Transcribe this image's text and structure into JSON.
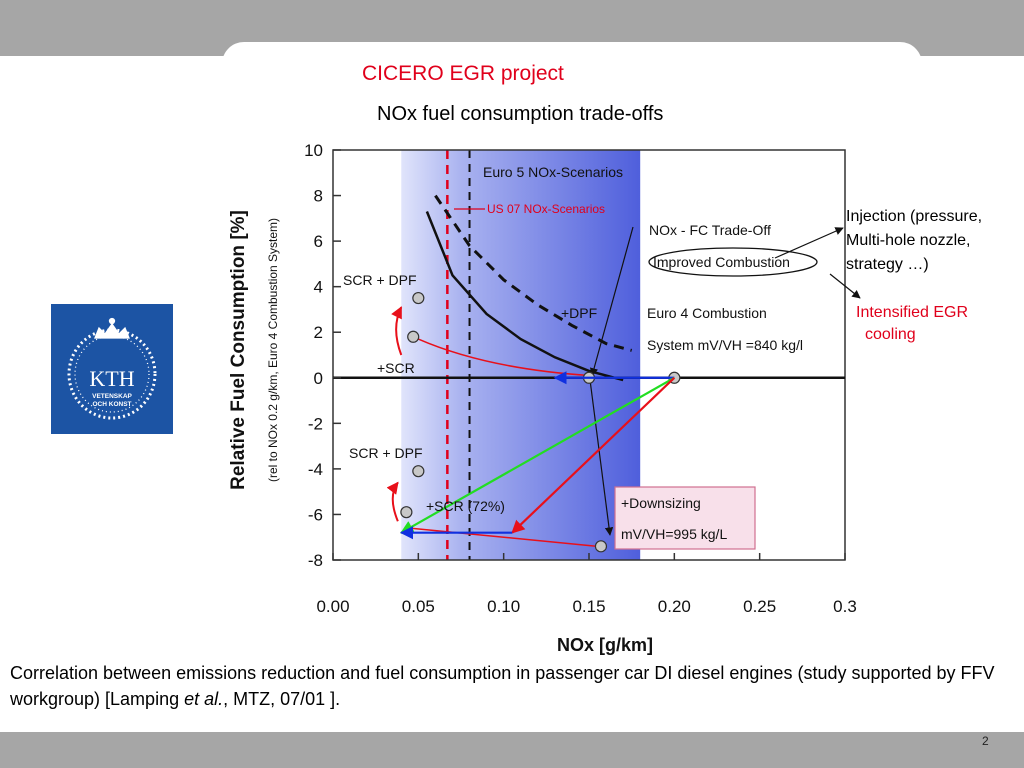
{
  "slide": {
    "title": "CICERO EGR project",
    "subtitle": "NOx fuel consumption trade-offs",
    "page_number": "2",
    "caption": {
      "text_before": "Correlation between emissions reduction and fuel consumption in passenger car DI diesel engines (study supported by FFV workgroup) [Lamping ",
      "italic": "et al.",
      "text_after": ", MTZ, 07/01 ]."
    },
    "notes": {
      "injection": [
        "Injection (pressure,",
        "Multi-hole nozzle,",
        "strategy …)"
      ],
      "egr": [
        "Intensified EGR",
        "cooling"
      ]
    },
    "colors": {
      "title_red": "#e0001b",
      "kth_blue": "#1c54a4",
      "green_arrow": "#22dd22",
      "red_arrow": "#e8101a",
      "blue_arrow": "#1030e0",
      "shade_blue": "#4f5fdc"
    }
  },
  "logo": {
    "name": "KTH",
    "line1": "VETENSKAP",
    "line2": "OCH KONST",
    "icon": "kth-crown-wreath-icon"
  },
  "chart_data": {
    "type": "line",
    "xlabel": "NOx [g/km]",
    "ylabel": "Relative Fuel Consumption [%]",
    "ylabel2": "(rel to NOx 0.2 g/km, Euro 4 Combustion System)",
    "xlim": [
      0.0,
      0.3
    ],
    "ylim": [
      -8,
      10
    ],
    "x_ticks": [
      "0.00",
      "0.05",
      "0.10",
      "0.15",
      "0.20",
      "0.25",
      "0.3"
    ],
    "y_ticks": [
      "10",
      "8",
      "6",
      "4",
      "2",
      "0",
      "-2",
      "-4",
      "-6",
      "-8"
    ],
    "shaded_region": {
      "x": [
        0.04,
        0.18
      ],
      "label": "Euro 5 NOx-Scenarios"
    },
    "vlines": [
      {
        "x": 0.067,
        "style": "red-dashed",
        "label": "US 07 NOx-Scenarios"
      },
      {
        "x": 0.08,
        "style": "black-dashed",
        "label": ""
      }
    ],
    "series": [
      {
        "name": "NOx - FC Trade-Off",
        "style": "solid",
        "x": [
          0.055,
          0.07,
          0.09,
          0.11,
          0.13,
          0.15,
          0.17
        ],
        "y": [
          7.3,
          4.5,
          2.8,
          1.7,
          0.9,
          0.3,
          -0.1
        ]
      },
      {
        "name": "Improved Combustion",
        "style": "dashed",
        "x": [
          0.06,
          0.08,
          0.1,
          0.12,
          0.14,
          0.16,
          0.175
        ],
        "y": [
          8.0,
          5.8,
          4.3,
          3.2,
          2.3,
          1.5,
          1.2
        ]
      }
    ],
    "points": [
      {
        "label": "SCR + DPF",
        "x": 0.05,
        "y": 3.5
      },
      {
        "label": "+SCR",
        "x": 0.047,
        "y": 1.8
      },
      {
        "label": "SCR + DPF",
        "x": 0.05,
        "y": -4.1
      },
      {
        "label": "+SCR (72%)",
        "x": 0.043,
        "y": -5.9
      },
      {
        "label": "",
        "x": 0.15,
        "y": 0.0
      },
      {
        "label": "",
        "x": 0.2,
        "y": 0.0
      },
      {
        "label": "",
        "x": 0.157,
        "y": -7.4
      }
    ],
    "annotations": [
      {
        "text": "NOx - FC Trade-Off"
      },
      {
        "text": "Improved Combustion"
      },
      {
        "text": "+DPF"
      },
      {
        "text": "Euro 4 Combustion"
      },
      {
        "text": "System mV/VH =840 kg/l"
      },
      {
        "text": "+Downsizing"
      },
      {
        "text": "mV/VH=995 kg/L"
      }
    ],
    "overlay_arrows": [
      {
        "color": "blue",
        "from": [
          0.2,
          0.0
        ],
        "to": [
          0.13,
          0.0
        ]
      },
      {
        "color": "green",
        "from": [
          0.2,
          0.0
        ],
        "to": [
          0.04,
          -6.8
        ]
      },
      {
        "color": "red",
        "from": [
          0.2,
          0.0
        ],
        "to": [
          0.105,
          -6.8
        ]
      },
      {
        "color": "blue",
        "from": [
          0.105,
          -6.8
        ],
        "to": [
          0.04,
          -6.8
        ]
      }
    ]
  }
}
